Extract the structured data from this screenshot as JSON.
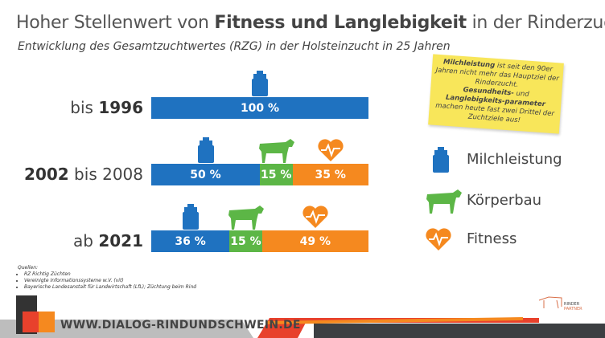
{
  "title": {
    "pre": "Hoher Stellenwert von ",
    "bold": "Fitness und Langlebigkeit",
    "post": " in der Rinderzucht"
  },
  "subtitle": "Entwicklung des Gesamtzuchtwertes (RZG) in der Holsteinzucht in 25 Jahren",
  "note": {
    "b1": "Milchleistung",
    "t1": " ist seit den 90er Jahren nicht mehr das Hauptziel der Rinderzucht.",
    "b2": "Gesundheits-",
    "t2": " und ",
    "b3": "Langlebigkeits-parameter",
    "t3": " machen heute fast zwei Drittel der Zuchtziele aus!"
  },
  "chart_data": {
    "type": "bar",
    "stacked": true,
    "orientation": "horizontal",
    "categories": [
      {
        "pre": "bis ",
        "bold": "1996"
      },
      {
        "pre": "",
        "bold": "2002",
        "post": " bis 2008"
      },
      {
        "pre": "ab ",
        "bold": "2021"
      }
    ],
    "series": [
      {
        "name": "Milchleistung",
        "color": "#1f72c0",
        "icon": "milk-can-icon",
        "values": [
          100,
          50,
          36
        ],
        "labels": [
          "100 %",
          "50 %",
          "36 %"
        ]
      },
      {
        "name": "Körperbau",
        "color": "#5cb646",
        "icon": "cow-icon",
        "values": [
          0,
          15,
          15
        ],
        "labels": [
          "",
          "15 %",
          "15 %"
        ]
      },
      {
        "name": "Fitness",
        "color": "#f5891f",
        "icon": "heart-pulse-icon",
        "values": [
          0,
          35,
          49
        ],
        "labels": [
          "",
          "35 %",
          "49 %"
        ]
      }
    ],
    "xlim": [
      0,
      100
    ]
  },
  "sources": {
    "heading": "Quellen:",
    "items": [
      "RZ Richtig Züchten",
      "Vereinigte Informationssysteme w.V. (vit)",
      "Bayerische Landesanstalt für Landwirtschaft (LfL); Züchtung beim Rind"
    ]
  },
  "footer": {
    "url": "WWW.DIALOG-RINDUNDSCHWEIN.DE"
  }
}
